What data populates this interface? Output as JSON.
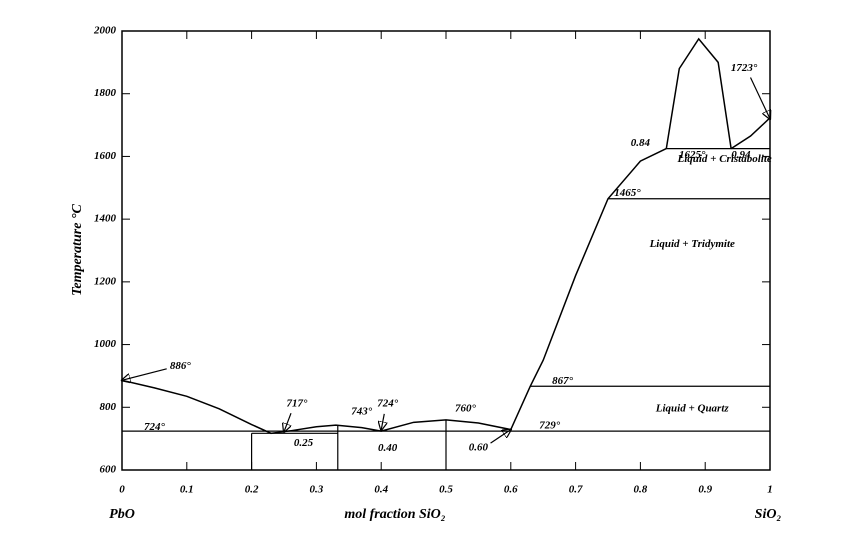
{
  "chart_data": {
    "type": "phase",
    "x_label": "mol fraction SiO₂",
    "y_label": "Temperature °C",
    "x_end_labels": [
      "PbO",
      "SiO₂"
    ],
    "xlim": [
      0,
      1
    ],
    "ylim": [
      600,
      2000
    ],
    "xticks": [
      0,
      0.1,
      0.2,
      0.3,
      0.4,
      0.5,
      0.6,
      0.7,
      0.8,
      0.9,
      1
    ],
    "yticks": [
      600,
      800,
      1000,
      1200,
      1400,
      1600,
      1800,
      2000
    ],
    "color": "#000000",
    "curves": [
      {
        "x": [
          0,
          0.05,
          0.1,
          0.15,
          0.2,
          0.23,
          0.26,
          0.3,
          0.33,
          0.37,
          0.4,
          0.45,
          0.5,
          0.55,
          0.6,
          0.63,
          0.65,
          0.7,
          0.75,
          0.8,
          0.84
        ],
        "values": [
          886,
          862,
          835,
          795,
          745,
          717,
          725,
          738,
          743,
          735,
          724,
          752,
          760,
          750,
          729,
          867,
          950,
          1220,
          1465,
          1585,
          1625
        ]
      },
      {
        "x": [
          0.84,
          0.86,
          0.89,
          0.92,
          0.94
        ],
        "values": [
          1625,
          1880,
          1975,
          1900,
          1625
        ]
      },
      {
        "x": [
          0.94,
          0.97,
          1
        ],
        "values": [
          1625,
          1665,
          1723
        ]
      }
    ],
    "isotherms": [
      {
        "y": 724,
        "x": [
          0,
          1
        ]
      },
      {
        "y": 717,
        "x": [
          0.2,
          0.333
        ]
      },
      {
        "y": 867,
        "x": [
          0.63,
          1
        ]
      },
      {
        "y": 1465,
        "x": [
          0.75,
          1
        ]
      },
      {
        "y": 1625,
        "x": [
          0.84,
          1
        ]
      }
    ],
    "verticals": [
      {
        "x": 0.2,
        "y": [
          600,
          717
        ]
      },
      {
        "x": 0.333,
        "y": [
          600,
          743
        ]
      },
      {
        "x": 0.5,
        "y": [
          600,
          760
        ]
      }
    ],
    "annotations": [
      {
        "label": "886°",
        "x": 0.09,
        "y": 930,
        "arrow_to": [
          0,
          886
        ]
      },
      {
        "label": "724°",
        "x": 0.05,
        "y": 735
      },
      {
        "label": "717°",
        "x": 0.27,
        "y": 810,
        "arrow_to": [
          0.25,
          722
        ]
      },
      {
        "label": "743°",
        "x": 0.37,
        "y": 785
      },
      {
        "label": "724°",
        "x": 0.41,
        "y": 810,
        "arrow_to": [
          0.4,
          728
        ]
      },
      {
        "label": "760°",
        "x": 0.53,
        "y": 795
      },
      {
        "label": "0.25",
        "x": 0.28,
        "y": 685
      },
      {
        "label": "0.40",
        "x": 0.41,
        "y": 668
      },
      {
        "label": "0.60",
        "x": 0.55,
        "y": 670,
        "arrow_to": [
          0.6,
          729
        ]
      },
      {
        "label": "729°",
        "x": 0.66,
        "y": 740
      },
      {
        "label": "867°",
        "x": 0.68,
        "y": 882
      },
      {
        "label": "Liquid + Quartz",
        "x": 0.88,
        "y": 795
      },
      {
        "label": "Liquid + Tridymite",
        "x": 0.88,
        "y": 1320
      },
      {
        "label": "1465°",
        "x": 0.78,
        "y": 1482
      },
      {
        "label": "Liquid + Cristabolite",
        "x": 0.93,
        "y": 1590
      },
      {
        "label": "1625°",
        "x": 0.88,
        "y": 1603
      },
      {
        "label": "0.94",
        "x": 0.955,
        "y": 1603
      },
      {
        "label": "0.84",
        "x": 0.8,
        "y": 1642
      },
      {
        "label": "1723°",
        "x": 0.96,
        "y": 1880,
        "arrow_to": [
          1,
          1720
        ]
      }
    ]
  }
}
